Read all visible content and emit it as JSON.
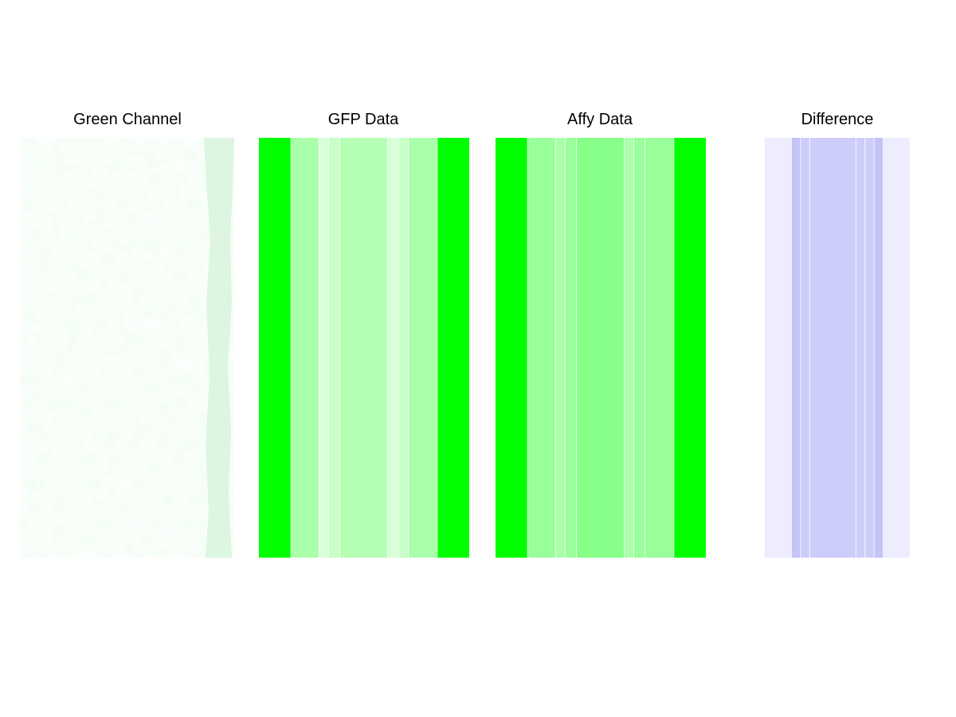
{
  "chart_data": [
    {
      "type": "heatmap",
      "title": "Green Channel",
      "description_kind": "image",
      "base_color": "#fafffb",
      "noise_color": "#e2f7e4",
      "edge_streak_color": "#d2f2d6"
    },
    {
      "type": "heatmap",
      "title": "GFP Data",
      "bands": [
        {
          "value": 1.0,
          "color": "#00ff00"
        },
        {
          "value": 0.35,
          "color": "#aaffaa"
        },
        {
          "value": 0.15,
          "color": "#d9ffd9"
        },
        {
          "value": 0.22,
          "color": "#c8ffc8"
        },
        {
          "value": 0.3,
          "color": "#b5ffb5"
        },
        {
          "value": 0.15,
          "color": "#d9ffd9"
        },
        {
          "value": 0.22,
          "color": "#c8ffc8"
        },
        {
          "value": 0.35,
          "color": "#aaffaa"
        },
        {
          "value": 1.0,
          "color": "#00ff00"
        }
      ],
      "band_units": [
        40,
        35,
        12,
        14,
        60,
        14,
        12,
        36,
        40
      ]
    },
    {
      "type": "heatmap",
      "title": "Affy Data",
      "bands": [
        {
          "value": 1.0,
          "color": "#00ff00"
        },
        {
          "value": 0.4,
          "color": "#99ff99"
        },
        {
          "value": 0.3,
          "color": "#aaffaa"
        },
        {
          "value": 0.4,
          "color": "#99ff99"
        },
        {
          "value": 0.5,
          "color": "#88ff88"
        },
        {
          "value": 0.3,
          "color": "#aaffaa"
        },
        {
          "value": 0.4,
          "color": "#99ff99"
        },
        {
          "value": 0.4,
          "color": "#99ff99"
        },
        {
          "value": 1.0,
          "color": "#00ff00"
        }
      ],
      "band_units": [
        40,
        35,
        12,
        14,
        60,
        12,
        14,
        36,
        40
      ]
    },
    {
      "type": "heatmap",
      "title": "Difference",
      "bands": [
        {
          "value": 0.1,
          "color": "#ededff"
        },
        {
          "value": 0.2,
          "color": "#c4c4f7"
        },
        {
          "value": 0.2,
          "color": "#cdcdfb"
        },
        {
          "value": 0.2,
          "color": "#cdcdfb"
        },
        {
          "value": 0.2,
          "color": "#cdcdfb"
        },
        {
          "value": 0.2,
          "color": "#cdcdfb"
        },
        {
          "value": 0.2,
          "color": "#c4c4f7"
        },
        {
          "value": 0.1,
          "color": "#ededff"
        }
      ],
      "band_units": [
        35,
        12,
        12,
        61,
        12,
        12,
        12,
        35
      ]
    }
  ]
}
